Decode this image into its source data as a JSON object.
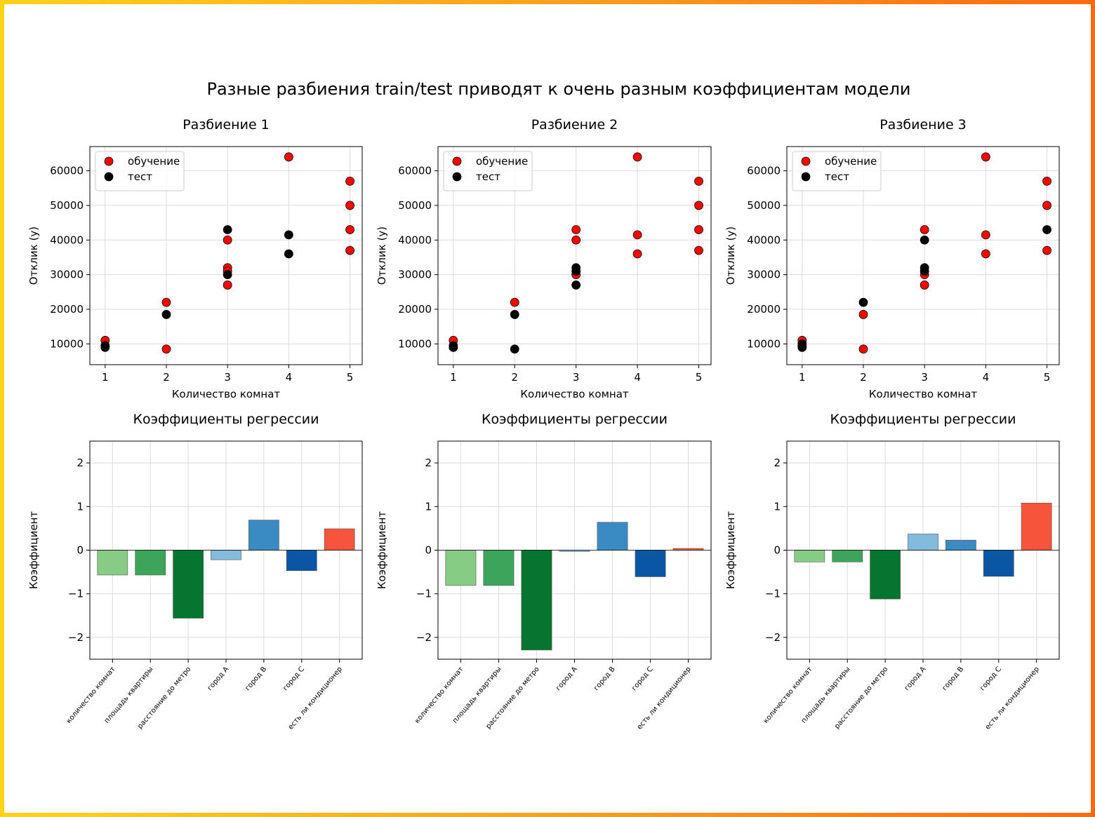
{
  "title": "Разные разбиения train/test приводят к очень разным коэффициентам модели",
  "colors": {
    "train": "#ff0000",
    "test": "#000000",
    "bars": [
      "#86cc85",
      "#3ca55b",
      "#05752f",
      "#82bbdb",
      "#3a8bc4",
      "#0a56a5",
      "#f6553b"
    ]
  },
  "chart_data": [
    {
      "type": "scatter",
      "title": "Разбиение 1",
      "xlabel": "Количество комнат",
      "ylabel": "Отклик (y)",
      "xticks": [
        1,
        2,
        3,
        4,
        5
      ],
      "yticks": [
        10000,
        20000,
        30000,
        40000,
        50000,
        60000
      ],
      "xlim": [
        0.75,
        5.2
      ],
      "ylim": [
        4000,
        67000
      ],
      "grid": true,
      "legend": "top-left",
      "series": [
        {
          "name": "обучение",
          "color": "#ff0000",
          "points": [
            [
              1,
              11000
            ],
            [
              2,
              22000
            ],
            [
              2,
              8500
            ],
            [
              3,
              40000
            ],
            [
              3,
              32000
            ],
            [
              3,
              31000
            ],
            [
              3,
              27000
            ],
            [
              4,
              64000
            ],
            [
              5,
              57000
            ],
            [
              5,
              50000
            ],
            [
              5,
              43000
            ],
            [
              5,
              37000
            ]
          ]
        },
        {
          "name": "тест",
          "color": "#000000",
          "points": [
            [
              1,
              9000
            ],
            [
              1,
              9500
            ],
            [
              2,
              18500
            ],
            [
              3,
              43000
            ],
            [
              3,
              30000
            ],
            [
              4,
              41500
            ],
            [
              4,
              36000
            ]
          ]
        }
      ]
    },
    {
      "type": "scatter",
      "title": "Разбиение 2",
      "xlabel": "Количество комнат",
      "ylabel": "Отклик (y)",
      "xticks": [
        1,
        2,
        3,
        4,
        5
      ],
      "yticks": [
        10000,
        20000,
        30000,
        40000,
        50000,
        60000
      ],
      "xlim": [
        0.75,
        5.2
      ],
      "ylim": [
        4000,
        67000
      ],
      "grid": true,
      "legend": "top-left",
      "series": [
        {
          "name": "обучение",
          "color": "#ff0000",
          "points": [
            [
              1,
              11000
            ],
            [
              2,
              22000
            ],
            [
              3,
              43000
            ],
            [
              3,
              40000
            ],
            [
              3,
              30000
            ],
            [
              4,
              64000
            ],
            [
              4,
              41500
            ],
            [
              4,
              36000
            ],
            [
              5,
              57000
            ],
            [
              5,
              50000
            ],
            [
              5,
              43000
            ],
            [
              5,
              37000
            ]
          ]
        },
        {
          "name": "тест",
          "color": "#000000",
          "points": [
            [
              1,
              9000
            ],
            [
              1,
              9500
            ],
            [
              2,
              18500
            ],
            [
              2,
              8500
            ],
            [
              3,
              32000
            ],
            [
              3,
              31000
            ],
            [
              3,
              27000
            ]
          ]
        }
      ]
    },
    {
      "type": "scatter",
      "title": "Разбиение 3",
      "xlabel": "Количество комнат",
      "ylabel": "Отклик (y)",
      "xticks": [
        1,
        2,
        3,
        4,
        5
      ],
      "yticks": [
        10000,
        20000,
        30000,
        40000,
        50000,
        60000
      ],
      "xlim": [
        0.75,
        5.2
      ],
      "ylim": [
        4000,
        67000
      ],
      "grid": true,
      "legend": "top-left",
      "series": [
        {
          "name": "обучение",
          "color": "#ff0000",
          "points": [
            [
              1,
              11000
            ],
            [
              2,
              18500
            ],
            [
              2,
              8500
            ],
            [
              3,
              43000
            ],
            [
              3,
              30000
            ],
            [
              3,
              27000
            ],
            [
              4,
              64000
            ],
            [
              4,
              41500
            ],
            [
              4,
              36000
            ],
            [
              5,
              57000
            ],
            [
              5,
              50000
            ],
            [
              5,
              37000
            ]
          ]
        },
        {
          "name": "тест",
          "color": "#000000",
          "points": [
            [
              1,
              9000
            ],
            [
              1,
              9500
            ],
            [
              1,
              10000
            ],
            [
              2,
              22000
            ],
            [
              3,
              40000
            ],
            [
              3,
              32000
            ],
            [
              3,
              31000
            ],
            [
              5,
              43000
            ]
          ]
        }
      ]
    },
    {
      "type": "bar",
      "title": "Коэффициенты регрессии",
      "xlabel": "",
      "ylabel": "Коэффициент",
      "categories": [
        "количество комнат",
        "площадь квартиры",
        "расстояние до метро",
        "город A",
        "город B",
        "город C",
        "есть ли кондиционер"
      ],
      "values": [
        -0.57,
        -0.57,
        -1.56,
        -0.22,
        0.69,
        -0.47,
        0.49
      ],
      "yticks": [
        -2,
        -1,
        0,
        1,
        2
      ],
      "ylim": [
        -2.5,
        2.5
      ],
      "grid": true
    },
    {
      "type": "bar",
      "title": "Коэффициенты регрессии",
      "xlabel": "",
      "ylabel": "Коэффициент",
      "categories": [
        "количество комнат",
        "площадь квартиры",
        "расстояние до метро",
        "город A",
        "город B",
        "город C",
        "есть ли кондиционер"
      ],
      "values": [
        -0.81,
        -0.81,
        -2.29,
        -0.03,
        0.64,
        -0.61,
        0.04
      ],
      "yticks": [
        -2,
        -1,
        0,
        1,
        2
      ],
      "ylim": [
        -2.5,
        2.5
      ],
      "grid": true
    },
    {
      "type": "bar",
      "title": "Коэффициенты регрессии",
      "xlabel": "",
      "ylabel": "Коэффициент",
      "categories": [
        "количество комнат",
        "площадь квартиры",
        "расстояние до метро",
        "город A",
        "город B",
        "город C",
        "есть ли кондиционер"
      ],
      "values": [
        -0.27,
        -0.27,
        -1.12,
        0.37,
        0.23,
        -0.6,
        1.08
      ],
      "yticks": [
        -2,
        -1,
        0,
        1,
        2
      ],
      "ylim": [
        -2.5,
        2.5
      ],
      "grid": true
    }
  ]
}
